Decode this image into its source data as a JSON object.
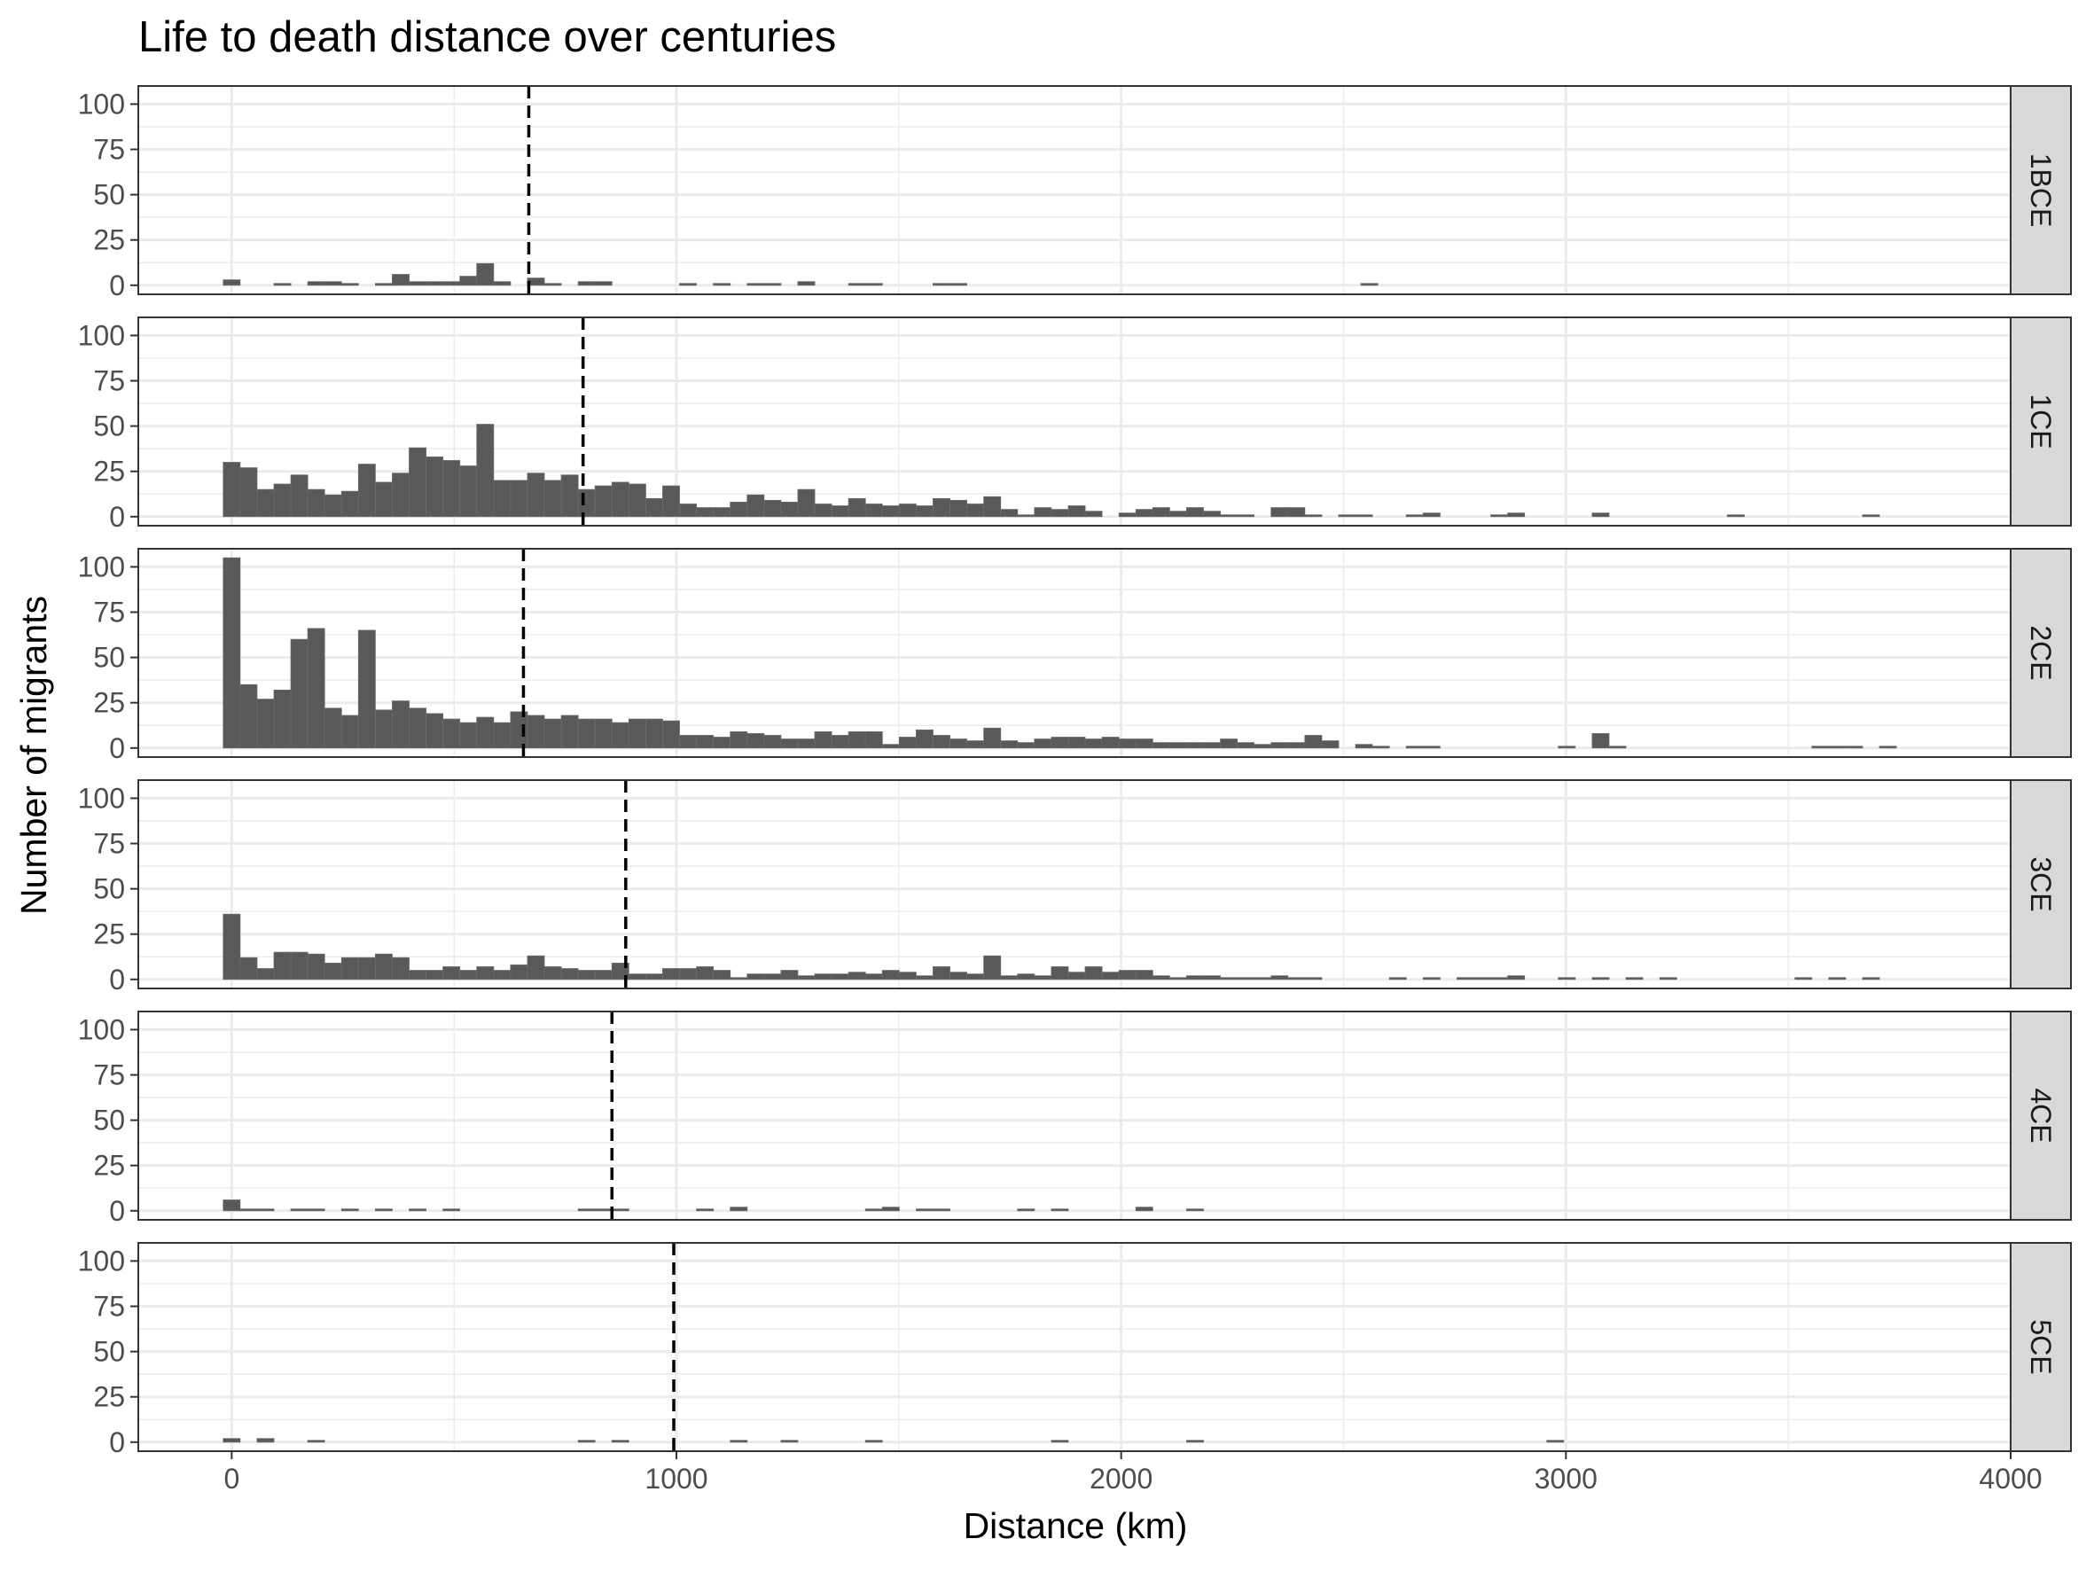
{
  "chart_data": {
    "type": "bar",
    "title": "Life to death distance over centuries",
    "xlabel": "Distance (km)",
    "ylabel": "Number of migrants",
    "xlim": [
      -210,
      4000
    ],
    "ylim": [
      -5,
      110
    ],
    "x_ticks": [
      0,
      1000,
      2000,
      3000,
      4000
    ],
    "y_ticks": [
      0,
      25,
      50,
      75,
      100
    ],
    "bin_width": 38,
    "grid": true,
    "colors": {
      "bar": "#595959",
      "grid": "#ebebeb",
      "strip": "#d9d9d9",
      "median_line": "#000000"
    },
    "panels": [
      {
        "name": "1BCE",
        "median": 668,
        "bins": [
          [
            0,
            3
          ],
          [
            114,
            1
          ],
          [
            190,
            2
          ],
          [
            228,
            2
          ],
          [
            266,
            1
          ],
          [
            342,
            1
          ],
          [
            380,
            6
          ],
          [
            418,
            2
          ],
          [
            456,
            2
          ],
          [
            494,
            2
          ],
          [
            532,
            5
          ],
          [
            570,
            12
          ],
          [
            608,
            2
          ],
          [
            684,
            4
          ],
          [
            722,
            1
          ],
          [
            798,
            2
          ],
          [
            836,
            2
          ],
          [
            1026,
            1
          ],
          [
            1102,
            1
          ],
          [
            1178,
            1
          ],
          [
            1216,
            1
          ],
          [
            1292,
            2
          ],
          [
            1406,
            1
          ],
          [
            1444,
            1
          ],
          [
            1596,
            1
          ],
          [
            1634,
            1
          ],
          [
            2558,
            1
          ]
        ]
      },
      {
        "name": "1CE",
        "median": 790,
        "bins": [
          [
            0,
            30
          ],
          [
            38,
            27
          ],
          [
            76,
            15
          ],
          [
            114,
            18
          ],
          [
            152,
            23
          ],
          [
            190,
            15
          ],
          [
            228,
            12
          ],
          [
            266,
            14
          ],
          [
            304,
            29
          ],
          [
            342,
            19
          ],
          [
            380,
            24
          ],
          [
            418,
            38
          ],
          [
            456,
            33
          ],
          [
            494,
            31
          ],
          [
            532,
            28
          ],
          [
            570,
            51
          ],
          [
            608,
            20
          ],
          [
            646,
            20
          ],
          [
            684,
            24
          ],
          [
            722,
            20
          ],
          [
            760,
            23
          ],
          [
            798,
            15
          ],
          [
            836,
            17
          ],
          [
            874,
            19
          ],
          [
            912,
            18
          ],
          [
            950,
            10
          ],
          [
            988,
            17
          ],
          [
            1026,
            7
          ],
          [
            1064,
            5
          ],
          [
            1102,
            5
          ],
          [
            1140,
            8
          ],
          [
            1178,
            12
          ],
          [
            1216,
            9
          ],
          [
            1254,
            8
          ],
          [
            1292,
            15
          ],
          [
            1330,
            7
          ],
          [
            1368,
            6
          ],
          [
            1406,
            10
          ],
          [
            1444,
            7
          ],
          [
            1482,
            6
          ],
          [
            1520,
            7
          ],
          [
            1558,
            6
          ],
          [
            1596,
            10
          ],
          [
            1634,
            9
          ],
          [
            1672,
            7
          ],
          [
            1710,
            11
          ],
          [
            1748,
            4
          ],
          [
            1786,
            1
          ],
          [
            1824,
            5
          ],
          [
            1862,
            4
          ],
          [
            1900,
            6
          ],
          [
            1938,
            3
          ],
          [
            2014,
            2
          ],
          [
            2052,
            4
          ],
          [
            2090,
            5
          ],
          [
            2128,
            3
          ],
          [
            2166,
            5
          ],
          [
            2204,
            3
          ],
          [
            2242,
            1
          ],
          [
            2280,
            1
          ],
          [
            2356,
            5
          ],
          [
            2394,
            5
          ],
          [
            2432,
            1
          ],
          [
            2508,
            1
          ],
          [
            2546,
            1
          ],
          [
            2660,
            1
          ],
          [
            2698,
            2
          ],
          [
            2850,
            1
          ],
          [
            2888,
            2
          ],
          [
            3078,
            2
          ],
          [
            3382,
            1
          ],
          [
            3686,
            1
          ]
        ]
      },
      {
        "name": "2CE",
        "median": 656,
        "bins": [
          [
            0,
            105
          ],
          [
            38,
            35
          ],
          [
            76,
            27
          ],
          [
            114,
            32
          ],
          [
            152,
            60
          ],
          [
            190,
            66
          ],
          [
            228,
            22
          ],
          [
            266,
            18
          ],
          [
            304,
            65
          ],
          [
            342,
            21
          ],
          [
            380,
            26
          ],
          [
            418,
            22
          ],
          [
            456,
            19
          ],
          [
            494,
            16
          ],
          [
            532,
            14
          ],
          [
            570,
            17
          ],
          [
            608,
            14
          ],
          [
            646,
            20
          ],
          [
            684,
            18
          ],
          [
            722,
            16
          ],
          [
            760,
            18
          ],
          [
            798,
            16
          ],
          [
            836,
            16
          ],
          [
            874,
            14
          ],
          [
            912,
            16
          ],
          [
            950,
            16
          ],
          [
            988,
            15
          ],
          [
            1026,
            7
          ],
          [
            1064,
            7
          ],
          [
            1102,
            6
          ],
          [
            1140,
            9
          ],
          [
            1178,
            8
          ],
          [
            1216,
            7
          ],
          [
            1254,
            5
          ],
          [
            1292,
            5
          ],
          [
            1330,
            9
          ],
          [
            1368,
            7
          ],
          [
            1406,
            9
          ],
          [
            1444,
            9
          ],
          [
            1482,
            2
          ],
          [
            1520,
            6
          ],
          [
            1558,
            10
          ],
          [
            1596,
            7
          ],
          [
            1634,
            5
          ],
          [
            1672,
            4
          ],
          [
            1710,
            11
          ],
          [
            1748,
            4
          ],
          [
            1786,
            3
          ],
          [
            1824,
            5
          ],
          [
            1862,
            6
          ],
          [
            1900,
            6
          ],
          [
            1938,
            5
          ],
          [
            1976,
            6
          ],
          [
            2014,
            5
          ],
          [
            2052,
            5
          ],
          [
            2090,
            3
          ],
          [
            2128,
            3
          ],
          [
            2166,
            3
          ],
          [
            2204,
            3
          ],
          [
            2242,
            5
          ],
          [
            2280,
            3
          ],
          [
            2318,
            2
          ],
          [
            2356,
            3
          ],
          [
            2394,
            3
          ],
          [
            2432,
            7
          ],
          [
            2470,
            4
          ],
          [
            2546,
            2
          ],
          [
            2584,
            1
          ],
          [
            2660,
            1
          ],
          [
            2698,
            1
          ],
          [
            3002,
            1
          ],
          [
            3078,
            8
          ],
          [
            3116,
            1
          ],
          [
            3572,
            1
          ],
          [
            3610,
            1
          ],
          [
            3648,
            1
          ],
          [
            3724,
            1
          ]
        ]
      },
      {
        "name": "3CE",
        "median": 886,
        "bins": [
          [
            0,
            36
          ],
          [
            38,
            12
          ],
          [
            76,
            6
          ],
          [
            114,
            15
          ],
          [
            152,
            15
          ],
          [
            190,
            14
          ],
          [
            228,
            9
          ],
          [
            266,
            12
          ],
          [
            304,
            12
          ],
          [
            342,
            14
          ],
          [
            380,
            12
          ],
          [
            418,
            5
          ],
          [
            456,
            5
          ],
          [
            494,
            7
          ],
          [
            532,
            5
          ],
          [
            570,
            7
          ],
          [
            608,
            5
          ],
          [
            646,
            8
          ],
          [
            684,
            13
          ],
          [
            722,
            7
          ],
          [
            760,
            6
          ],
          [
            798,
            5
          ],
          [
            836,
            5
          ],
          [
            874,
            9
          ],
          [
            912,
            3
          ],
          [
            950,
            3
          ],
          [
            988,
            6
          ],
          [
            1026,
            6
          ],
          [
            1064,
            7
          ],
          [
            1102,
            5
          ],
          [
            1140,
            1
          ],
          [
            1178,
            3
          ],
          [
            1216,
            3
          ],
          [
            1254,
            5
          ],
          [
            1292,
            2
          ],
          [
            1330,
            3
          ],
          [
            1368,
            3
          ],
          [
            1406,
            4
          ],
          [
            1444,
            3
          ],
          [
            1482,
            5
          ],
          [
            1520,
            4
          ],
          [
            1558,
            2
          ],
          [
            1596,
            7
          ],
          [
            1634,
            4
          ],
          [
            1672,
            3
          ],
          [
            1710,
            13
          ],
          [
            1748,
            2
          ],
          [
            1786,
            3
          ],
          [
            1824,
            2
          ],
          [
            1862,
            7
          ],
          [
            1900,
            4
          ],
          [
            1938,
            7
          ],
          [
            1976,
            4
          ],
          [
            2014,
            5
          ],
          [
            2052,
            5
          ],
          [
            2090,
            2
          ],
          [
            2128,
            1
          ],
          [
            2166,
            2
          ],
          [
            2204,
            2
          ],
          [
            2242,
            1
          ],
          [
            2280,
            1
          ],
          [
            2318,
            1
          ],
          [
            2356,
            2
          ],
          [
            2394,
            1
          ],
          [
            2432,
            1
          ],
          [
            2622,
            1
          ],
          [
            2698,
            1
          ],
          [
            2774,
            1
          ],
          [
            2812,
            1
          ],
          [
            2850,
            1
          ],
          [
            2888,
            2
          ],
          [
            3002,
            1
          ],
          [
            3078,
            1
          ],
          [
            3154,
            1
          ],
          [
            3230,
            1
          ],
          [
            3534,
            1
          ],
          [
            3610,
            1
          ],
          [
            3686,
            1
          ]
        ]
      },
      {
        "name": "4CE",
        "median": 855,
        "bins": [
          [
            0,
            6
          ],
          [
            38,
            1
          ],
          [
            76,
            1
          ],
          [
            152,
            1
          ],
          [
            190,
            1
          ],
          [
            266,
            1
          ],
          [
            342,
            1
          ],
          [
            418,
            1
          ],
          [
            494,
            1
          ],
          [
            798,
            1
          ],
          [
            836,
            1
          ],
          [
            874,
            1
          ],
          [
            1064,
            1
          ],
          [
            1140,
            2
          ],
          [
            1444,
            1
          ],
          [
            1482,
            2
          ],
          [
            1558,
            1
          ],
          [
            1596,
            1
          ],
          [
            1786,
            1
          ],
          [
            1862,
            1
          ],
          [
            2052,
            2
          ],
          [
            2166,
            1
          ]
        ]
      },
      {
        "name": "5CE",
        "median": 994,
        "bins": [
          [
            0,
            2
          ],
          [
            76,
            2
          ],
          [
            190,
            1
          ],
          [
            798,
            1
          ],
          [
            874,
            1
          ],
          [
            1140,
            1
          ],
          [
            1254,
            1
          ],
          [
            1444,
            1
          ],
          [
            1862,
            1
          ],
          [
            2166,
            1
          ],
          [
            2976,
            1
          ]
        ]
      }
    ]
  }
}
